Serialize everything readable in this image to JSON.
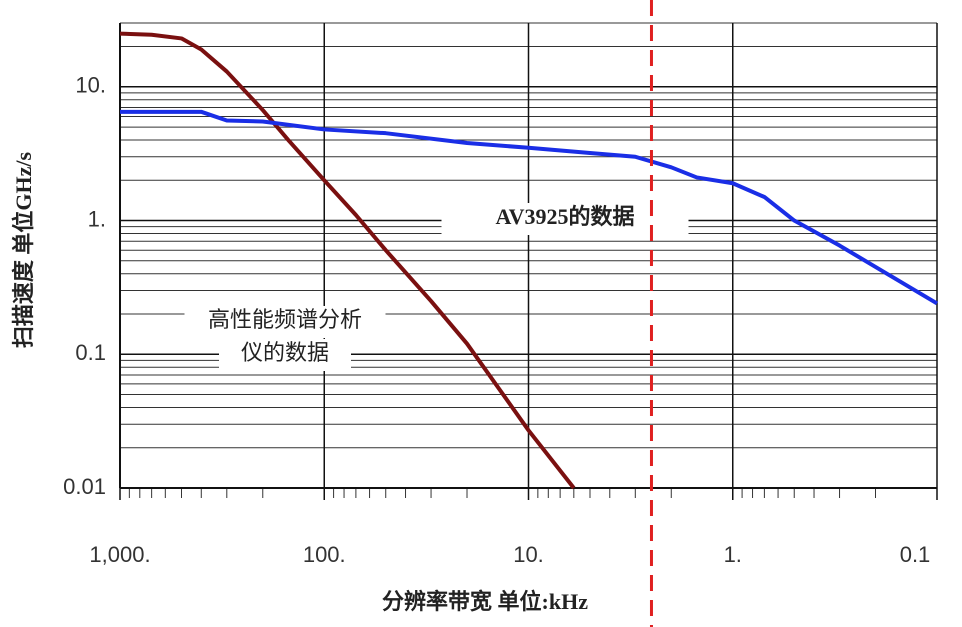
{
  "chart_data": {
    "type": "line",
    "x_label": "分辨率带宽 单位:kHz",
    "y_label": "扫描速度 单位GHz/s",
    "xlim": [
      1000,
      0.1
    ],
    "ylim": [
      0.01,
      30
    ],
    "x_log": true,
    "y_log": true,
    "x_reversed": true,
    "grid": true,
    "minor_grid": true,
    "xticks": [
      {
        "value": 1000,
        "label": "1,000."
      },
      {
        "value": 100,
        "label": "100."
      },
      {
        "value": 10,
        "label": "10."
      },
      {
        "value": 1,
        "label": "1."
      },
      0.1
    ],
    "yticks": [
      0.01,
      0.1,
      {
        "value": 1,
        "label": "1."
      },
      {
        "value": 10,
        "label": "10."
      }
    ],
    "series": [
      {
        "color": "#7a1010",
        "x": [
          1000,
          700,
          500,
          400,
          300,
          200,
          150,
          100,
          70,
          50,
          30,
          20,
          10,
          6
        ],
        "values": [
          25,
          24.5,
          23,
          19,
          13,
          6.7,
          4,
          2,
          1.1,
          0.6,
          0.25,
          0.12,
          0.027,
          0.01
        ]
      },
      {
        "color": "#1a2ee6",
        "x": [
          1000,
          400,
          300,
          200,
          100,
          50,
          20,
          10,
          5,
          3,
          2,
          1.5,
          1,
          0.7,
          0.5,
          0.3,
          0.2,
          0.1
        ],
        "values": [
          6.5,
          6.5,
          5.6,
          5.5,
          4.8,
          4.5,
          3.8,
          3.5,
          3.2,
          3.0,
          2.5,
          2.1,
          1.9,
          1.5,
          1.0,
          0.65,
          0.45,
          0.24
        ]
      }
    ],
    "marker_x": 2.5,
    "marker_color": "#e02020",
    "annotations": [
      {
        "lines": [
          "AV3925的数据"
        ]
      },
      {
        "lines": [
          "高性能频谱分析",
          "仪的数据"
        ]
      }
    ]
  }
}
